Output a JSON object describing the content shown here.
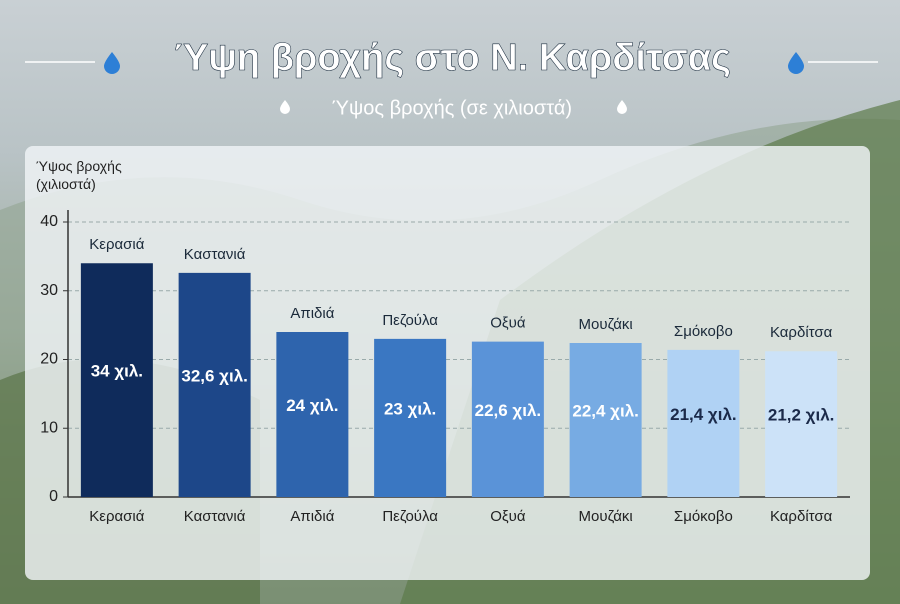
{
  "chart_data": {
    "type": "bar",
    "title": "Ύψη βροχής στο Ν. Καρδίτσας",
    "subtitle": "Ύψος βροχής (σε χιλιοστά)",
    "y_label": "Ύψος βροχής (χιλιοστά)",
    "categories": [
      "Κερασιά",
      "Καστανιά",
      "Απιδιά",
      "Πεζούλα",
      "Οξυά",
      "Μουζάκι",
      "Σμόκοβο",
      "Καρδίτσα"
    ],
    "values": [
      34,
      32.6,
      24,
      23,
      22.6,
      22.4,
      21.4,
      21.2
    ],
    "value_labels": [
      "34 χιλ.",
      "32,6 χιλ.",
      "24 χιλ.",
      "23 χιλ.",
      "22,6 χιλ.",
      "22,4 χιλ.",
      "21,4 χιλ.",
      "21,2 χιλ."
    ],
    "colors": [
      "#0f2b5b",
      "#1d4789",
      "#2e64ad",
      "#3a77c2",
      "#5a93d8",
      "#77abe3",
      "#b0d2f4",
      "#cce2f8"
    ],
    "ylim": [
      0,
      40
    ],
    "yticks": [
      0,
      10,
      20,
      30,
      40
    ],
    "grid": true
  }
}
